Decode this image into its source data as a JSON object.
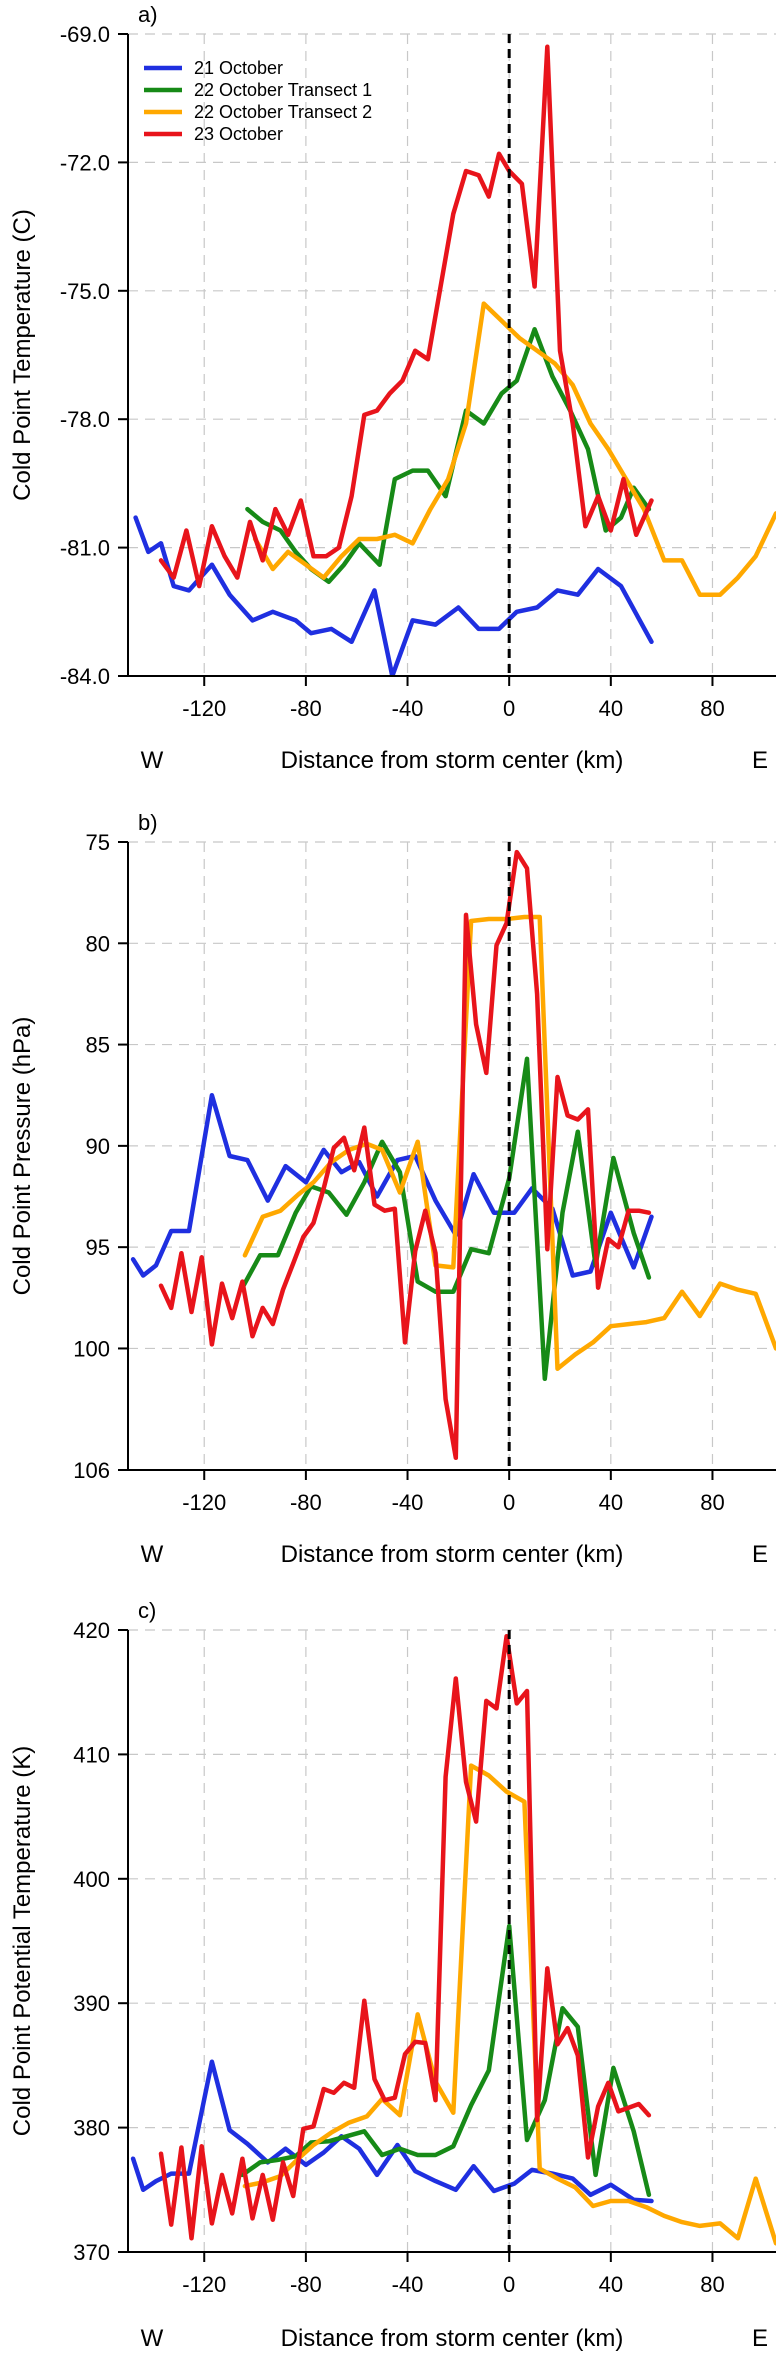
{
  "colors": {
    "21 October": "#1f2fe0",
    "22 October Transect 1": "#178a17",
    "22 October Transect 2": "#ffa800",
    "23 October": "#e8141b",
    "grid": "#c8c8c8",
    "center_line": "#000000"
  },
  "chart_data": [
    {
      "type": "line",
      "panel_label": "a)",
      "xlabel": "Distance from storm center (km)",
      "ylabel": "Cold Point Temperature (C)",
      "dir_left": "W",
      "dir_right": "E",
      "xlim": [
        -150,
        105
      ],
      "ylim": [
        -84.0,
        -69.0
      ],
      "inverted_y": false,
      "xticks": [
        -120,
        -80,
        -40,
        0,
        40,
        80
      ],
      "yticks": [
        -84.0,
        -81.0,
        -78.0,
        -75.0,
        -72.0,
        -69.0
      ],
      "ytick_labels": [
        "-84.0",
        "-81.0",
        "-78.0",
        "-75.0",
        "-72.0",
        "-69.0"
      ],
      "grid": true,
      "center_line_x": 0,
      "legend": {
        "position": "top-left",
        "entries": [
          "21 October",
          "22 October Transect 1",
          "22 October Transect 2",
          "23 October"
        ]
      },
      "series": [
        {
          "name": "21 October",
          "x": [
            -147,
            -142,
            -137,
            -132,
            -126,
            -117,
            -110,
            -101,
            -93,
            -84,
            -78,
            -70,
            -62,
            -53,
            -46,
            -38,
            -29,
            -20,
            -12,
            -4,
            3,
            11,
            19,
            27,
            35,
            44,
            56
          ],
          "y": [
            -80.3,
            -81.1,
            -80.9,
            -81.9,
            -82.0,
            -81.4,
            -82.1,
            -82.7,
            -82.5,
            -82.7,
            -83.0,
            -82.9,
            -83.2,
            -82.0,
            -84.0,
            -82.7,
            -82.8,
            -82.4,
            -82.9,
            -82.9,
            -82.5,
            -82.4,
            -82.0,
            -82.1,
            -81.5,
            -81.9,
            -83.2
          ]
        },
        {
          "name": "22 October Transect 1",
          "x": [
            -103,
            -97,
            -90,
            -84,
            -78,
            -71,
            -65,
            -59,
            -51,
            -45,
            -38,
            -32,
            -25,
            -17,
            -10,
            -3,
            3,
            10,
            17,
            24,
            31,
            38,
            44,
            49,
            55
          ],
          "y": [
            -80.1,
            -80.4,
            -80.6,
            -81.1,
            -81.5,
            -81.8,
            -81.4,
            -80.9,
            -81.4,
            -79.4,
            -79.2,
            -79.2,
            -79.8,
            -77.8,
            -78.1,
            -77.4,
            -77.1,
            -75.9,
            -77.0,
            -77.8,
            -78.7,
            -80.6,
            -80.3,
            -79.6,
            -80.1
          ]
        },
        {
          "name": "22 October Transect 2",
          "x": [
            -100,
            -93,
            -87,
            -80,
            -73,
            -66,
            -59,
            -52,
            -45,
            -38,
            -31,
            -24,
            -17,
            -10,
            -3,
            4,
            11,
            18,
            25,
            32,
            39,
            46,
            53,
            61,
            68,
            75,
            83,
            90,
            97,
            105
          ],
          "y": [
            -80.8,
            -81.5,
            -81.1,
            -81.4,
            -81.7,
            -81.2,
            -80.8,
            -80.8,
            -80.7,
            -80.9,
            -80.1,
            -79.4,
            -78.1,
            -75.3,
            -75.7,
            -76.1,
            -76.4,
            -76.7,
            -77.2,
            -78.1,
            -78.7,
            -79.4,
            -80.1,
            -81.3,
            -81.3,
            -82.1,
            -82.1,
            -81.7,
            -81.2,
            -80.2
          ]
        },
        {
          "name": "23 October",
          "x": [
            -137,
            -132,
            -127,
            -122,
            -117,
            -112,
            -107,
            -102,
            -97,
            -92,
            -87,
            -82,
            -77,
            -72,
            -67,
            -62,
            -57,
            -52,
            -47,
            -42,
            -37,
            -32,
            -27,
            -22,
            -17,
            -12,
            -8,
            -4,
            0,
            5,
            10,
            15,
            20,
            25,
            30,
            35,
            40,
            45,
            50,
            56
          ],
          "y": [
            -81.3,
            -81.7,
            -80.6,
            -81.9,
            -80.5,
            -81.2,
            -81.7,
            -80.4,
            -81.3,
            -80.1,
            -80.7,
            -79.9,
            -81.2,
            -81.2,
            -81.0,
            -79.8,
            -77.9,
            -77.8,
            -77.4,
            -77.1,
            -76.4,
            -76.6,
            -74.9,
            -73.2,
            -72.2,
            -72.3,
            -72.8,
            -71.8,
            -72.2,
            -72.5,
            -74.9,
            -69.3,
            -76.4,
            -78.1,
            -80.5,
            -79.8,
            -80.6,
            -79.4,
            -80.7,
            -79.9
          ]
        }
      ]
    },
    {
      "type": "line",
      "panel_label": "b)",
      "xlabel": "Distance from storm center (km)",
      "ylabel": "Cold Point Pressure (hPa)",
      "dir_left": "W",
      "dir_right": "E",
      "xlim": [
        -150,
        105
      ],
      "ylim": [
        106,
        75
      ],
      "inverted_y": true,
      "xticks": [
        -120,
        -80,
        -40,
        0,
        40,
        80
      ],
      "yticks": [
        75,
        80,
        85,
        90,
        95,
        100,
        106
      ],
      "ytick_labels": [
        "75",
        "80",
        "85",
        "90",
        "95",
        "100",
        "106"
      ],
      "grid": true,
      "center_line_x": 0,
      "series": [
        {
          "name": "21 October",
          "x": [
            -148,
            -144,
            -139,
            -133,
            -126,
            -117,
            -110,
            -103,
            -95,
            -88,
            -80,
            -73,
            -66,
            -59,
            -52,
            -44,
            -37,
            -29,
            -21,
            -14,
            -6,
            2,
            9,
            17,
            25,
            32,
            40,
            49,
            56
          ],
          "y": [
            95.6,
            96.4,
            95.9,
            94.2,
            94.2,
            87.5,
            90.5,
            90.7,
            92.7,
            91.0,
            91.8,
            90.2,
            91.3,
            90.8,
            92.5,
            90.7,
            90.5,
            92.7,
            94.4,
            91.4,
            93.3,
            93.3,
            92.1,
            93.1,
            96.4,
            96.2,
            93.3,
            96.0,
            93.5
          ]
        },
        {
          "name": "22 October Transect 1",
          "x": [
            -105,
            -98,
            -91,
            -84,
            -78,
            -71,
            -64,
            -57,
            -50,
            -43,
            -36,
            -29,
            -22,
            -15,
            -8,
            0,
            7,
            14,
            21,
            27,
            34,
            41,
            49,
            55
          ],
          "y": [
            97.0,
            95.4,
            95.4,
            93.3,
            92.0,
            92.3,
            93.4,
            91.8,
            89.8,
            91.3,
            96.7,
            97.2,
            97.2,
            95.1,
            95.3,
            91.6,
            85.7,
            101.5,
            93.3,
            89.3,
            95.9,
            90.6,
            94.3,
            96.5
          ]
        },
        {
          "name": "22 October Transect 2",
          "x": [
            -104,
            -97,
            -90,
            -83,
            -77,
            -70,
            -63,
            -56,
            -50,
            -43,
            -36,
            -29,
            -22,
            -15,
            -8,
            -1,
            6,
            12,
            19,
            26,
            33,
            40,
            47,
            54,
            61,
            68,
            75,
            83,
            90,
            97,
            105
          ],
          "y": [
            95.4,
            93.5,
            93.2,
            92.4,
            91.8,
            90.8,
            90.2,
            89.9,
            90.2,
            92.3,
            89.8,
            95.9,
            96.0,
            78.9,
            78.8,
            78.8,
            78.7,
            78.7,
            101.0,
            100.3,
            99.7,
            98.9,
            98.8,
            98.7,
            98.5,
            97.2,
            98.4,
            96.8,
            97.1,
            97.3,
            100.0
          ]
        },
        {
          "name": "23 October",
          "x": [
            -137,
            -133,
            -129,
            -125,
            -121,
            -117,
            -113,
            -109,
            -105,
            -101,
            -97,
            -93,
            -89,
            -85,
            -81,
            -77,
            -73,
            -69,
            -65,
            -61,
            -57,
            -53,
            -49,
            -45,
            -41,
            -37,
            -33,
            -29,
            -25,
            -21,
            -17,
            -13,
            -9,
            -5,
            -1,
            3,
            7,
            11,
            15,
            19,
            23,
            27,
            31,
            35,
            39,
            43,
            47,
            51,
            55
          ],
          "y": [
            96.9,
            98.0,
            95.3,
            98.2,
            95.5,
            99.8,
            96.8,
            98.5,
            96.7,
            99.4,
            98.0,
            98.8,
            97.1,
            95.8,
            94.5,
            93.8,
            92.1,
            90.1,
            89.6,
            91.2,
            89.1,
            92.9,
            93.2,
            93.1,
            99.7,
            95.2,
            93.2,
            95.3,
            102.5,
            105.4,
            78.6,
            84.0,
            86.4,
            80.1,
            79.0,
            75.5,
            76.3,
            82.5,
            95.1,
            86.6,
            88.5,
            88.7,
            88.2,
            97.0,
            94.6,
            95.0,
            93.2,
            93.2,
            93.3
          ]
        }
      ]
    },
    {
      "type": "line",
      "panel_label": "c)",
      "xlabel": "Distance from storm center (km)",
      "ylabel": "Cold Point Potential Temperature (K)",
      "dir_left": "W",
      "dir_right": "E",
      "xlim": [
        -150,
        105
      ],
      "ylim": [
        370,
        420
      ],
      "inverted_y": false,
      "xticks": [
        -120,
        -80,
        -40,
        0,
        40,
        80
      ],
      "yticks": [
        370,
        380,
        390,
        400,
        410,
        420
      ],
      "ytick_labels": [
        "370",
        "380",
        "390",
        "400",
        "410",
        "420"
      ],
      "grid": true,
      "center_line_x": 0,
      "series": [
        {
          "name": "21 October",
          "x": [
            -148,
            -144,
            -139,
            -133,
            -126,
            -117,
            -110,
            -103,
            -95,
            -88,
            -80,
            -73,
            -66,
            -59,
            -52,
            -44,
            -37,
            -29,
            -21,
            -14,
            -6,
            2,
            9,
            17,
            25,
            32,
            40,
            49,
            56
          ],
          "y": [
            377.5,
            375.0,
            375.7,
            376.3,
            376.3,
            385.3,
            379.8,
            378.7,
            377.2,
            378.3,
            377.0,
            378.0,
            379.3,
            378.3,
            376.2,
            378.6,
            376.5,
            375.7,
            375.0,
            376.9,
            374.9,
            375.5,
            376.6,
            376.3,
            375.9,
            374.6,
            375.4,
            374.2,
            374.1
          ]
        },
        {
          "name": "22 October Transect 1",
          "x": [
            -105,
            -98,
            -91,
            -84,
            -78,
            -71,
            -64,
            -57,
            -50,
            -43,
            -36,
            -29,
            -22,
            -15,
            -8,
            0,
            7,
            14,
            21,
            27,
            34,
            41,
            49,
            55
          ],
          "y": [
            376.2,
            377.2,
            377.4,
            377.7,
            378.8,
            378.9,
            379.3,
            379.7,
            377.8,
            378.3,
            377.8,
            377.8,
            378.5,
            381.8,
            384.6,
            396.2,
            379.0,
            382.2,
            389.6,
            388.1,
            376.2,
            384.8,
            379.7,
            374.6
          ]
        },
        {
          "name": "22 October Transect 2",
          "x": [
            -104,
            -97,
            -90,
            -83,
            -77,
            -70,
            -63,
            -56,
            -50,
            -43,
            -36,
            -29,
            -22,
            -15,
            -8,
            -1,
            6,
            12,
            19,
            26,
            33,
            40,
            47,
            54,
            61,
            68,
            75,
            83,
            90,
            97,
            105
          ],
          "y": [
            375.3,
            375.6,
            376.1,
            377.5,
            378.6,
            379.6,
            380.4,
            380.9,
            382.3,
            381.0,
            389.1,
            383.7,
            381.2,
            409.1,
            408.3,
            407.0,
            406.2,
            376.7,
            375.9,
            375.2,
            373.7,
            374.1,
            374.1,
            373.6,
            372.9,
            372.4,
            372.1,
            372.3,
            371.1,
            375.9,
            370.7
          ]
        },
        {
          "name": "23 October",
          "x": [
            -137,
            -133,
            -129,
            -125,
            -121,
            -117,
            -113,
            -109,
            -105,
            -101,
            -97,
            -93,
            -89,
            -85,
            -81,
            -77,
            -73,
            -69,
            -65,
            -61,
            -57,
            -53,
            -49,
            -45,
            -41,
            -37,
            -33,
            -29,
            -25,
            -21,
            -17,
            -13,
            -9,
            -5,
            -1,
            3,
            7,
            11,
            15,
            19,
            23,
            27,
            31,
            35,
            39,
            43,
            47,
            51,
            55
          ],
          "y": [
            377.9,
            372.2,
            378.4,
            371.1,
            378.5,
            372.3,
            376.2,
            373.1,
            377.5,
            372.7,
            376.2,
            372.6,
            377.2,
            374.5,
            379.9,
            380.1,
            383.1,
            382.8,
            383.6,
            383.2,
            390.2,
            383.9,
            382.2,
            382.4,
            385.9,
            386.9,
            386.8,
            382.2,
            408.2,
            416.1,
            407.8,
            404.6,
            414.3,
            413.7,
            419.5,
            414.1,
            415.1,
            380.6,
            392.8,
            386.7,
            388.0,
            385.8,
            377.6,
            381.7,
            383.6,
            381.3,
            381.6,
            381.9,
            381.0
          ]
        }
      ]
    }
  ]
}
